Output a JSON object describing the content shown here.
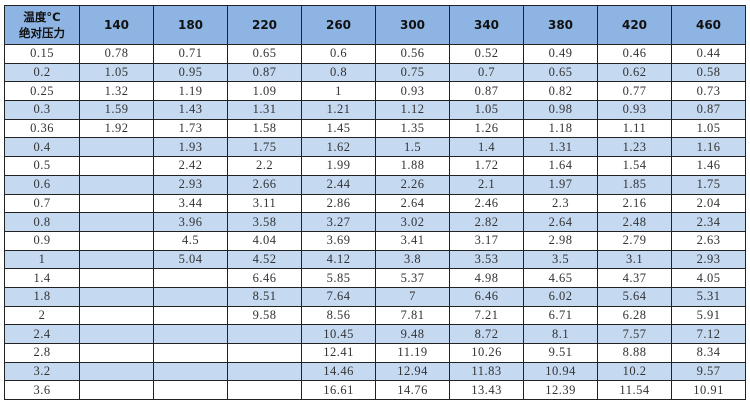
{
  "table": {
    "corner_line1": "温度°C",
    "corner_line2": "绝对压力",
    "temperatures": [
      "140",
      "180",
      "220",
      "260",
      "300",
      "340",
      "380",
      "420",
      "460"
    ],
    "row_colors": {
      "header": "#8db4e2",
      "alternate": "#c5d9f1",
      "normal": "#ffffff"
    },
    "rows": [
      {
        "pressure": "0.15",
        "values": [
          "0.78",
          "0.71",
          "0.65",
          "0.6",
          "0.56",
          "0.52",
          "0.49",
          "0.46",
          "0.44"
        ]
      },
      {
        "pressure": "0.2",
        "values": [
          "1.05",
          "0.95",
          "0.87",
          "0.8",
          "0.75",
          "0.7",
          "0.65",
          "0.62",
          "0.58"
        ]
      },
      {
        "pressure": "0.25",
        "values": [
          "1.32",
          "1.19",
          "1.09",
          "1",
          "0.93",
          "0.87",
          "0.82",
          "0.77",
          "0.73"
        ]
      },
      {
        "pressure": "0.3",
        "values": [
          "1.59",
          "1.43",
          "1.31",
          "1.21",
          "1.12",
          "1.05",
          "0.98",
          "0.93",
          "0.87"
        ]
      },
      {
        "pressure": "0.36",
        "values": [
          "1.92",
          "1.73",
          "1.58",
          "1.45",
          "1.35",
          "1.26",
          "1.18",
          "1.11",
          "1.05"
        ]
      },
      {
        "pressure": "0.4",
        "values": [
          "",
          "1.93",
          "1.75",
          "1.62",
          "1.5",
          "1.4",
          "1.31",
          "1.23",
          "1.16"
        ]
      },
      {
        "pressure": "0.5",
        "values": [
          "",
          "2.42",
          "2.2",
          "1.99",
          "1.88",
          "1.72",
          "1.64",
          "1.54",
          "1.46"
        ]
      },
      {
        "pressure": "0.6",
        "values": [
          "",
          "2.93",
          "2.66",
          "2.44",
          "2.26",
          "2.1",
          "1.97",
          "1.85",
          "1.75"
        ]
      },
      {
        "pressure": "0.7",
        "values": [
          "",
          "3.44",
          "3.11",
          "2.86",
          "2.64",
          "2.46",
          "2.3",
          "2.16",
          "2.04"
        ]
      },
      {
        "pressure": "0.8",
        "values": [
          "",
          "3.96",
          "3.58",
          "3.27",
          "3.02",
          "2.82",
          "2.64",
          "2.48",
          "2.34"
        ]
      },
      {
        "pressure": "0.9",
        "values": [
          "",
          "4.5",
          "4.04",
          "3.69",
          "3.41",
          "3.17",
          "2.98",
          "2.79",
          "2.63"
        ]
      },
      {
        "pressure": "1",
        "values": [
          "",
          "5.04",
          "4.52",
          "4.12",
          "3.8",
          "3.53",
          "3.5",
          "3.1",
          "2.93"
        ]
      },
      {
        "pressure": "1.4",
        "values": [
          "",
          "",
          "6.46",
          "5.85",
          "5.37",
          "4.98",
          "4.65",
          "4.37",
          "4.05"
        ]
      },
      {
        "pressure": "1.8",
        "values": [
          "",
          "",
          "8.51",
          "7.64",
          "7",
          "6.46",
          "6.02",
          "5.64",
          "5.31"
        ]
      },
      {
        "pressure": "2",
        "values": [
          "",
          "",
          "9.58",
          "8.56",
          "7.81",
          "7.21",
          "6.71",
          "6.28",
          "5.91"
        ]
      },
      {
        "pressure": "2.4",
        "values": [
          "",
          "",
          "",
          "10.45",
          "9.48",
          "8.72",
          "8.1",
          "7.57",
          "7.12"
        ]
      },
      {
        "pressure": "2.8",
        "values": [
          "",
          "",
          "",
          "12.41",
          "11.19",
          "10.26",
          "9.51",
          "8.88",
          "8.34"
        ]
      },
      {
        "pressure": "3.2",
        "values": [
          "",
          "",
          "",
          "14.46",
          "12.94",
          "11.83",
          "10.94",
          "10.2",
          "9.57"
        ]
      },
      {
        "pressure": "3.6",
        "values": [
          "",
          "",
          "",
          "16.61",
          "14.76",
          "13.43",
          "12.39",
          "11.54",
          "10.91"
        ]
      }
    ]
  }
}
